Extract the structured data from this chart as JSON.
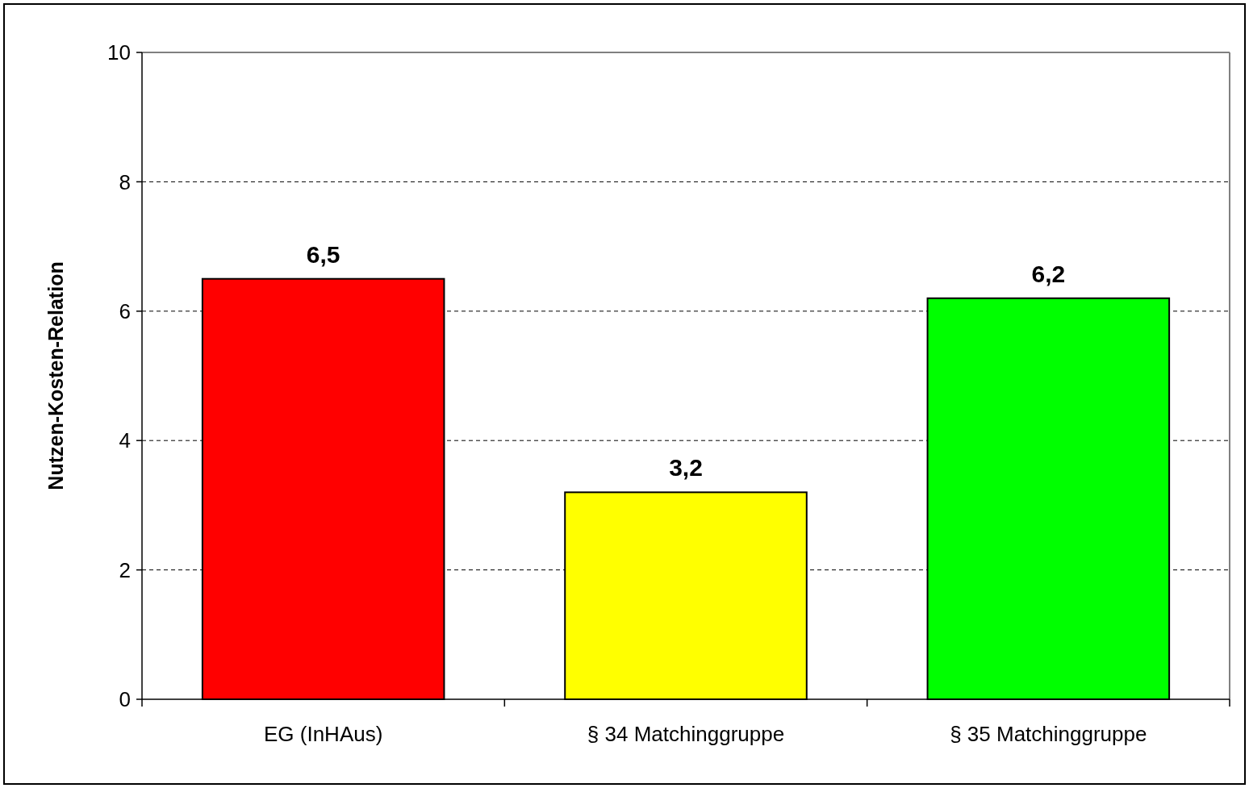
{
  "chart_data": {
    "type": "bar",
    "ylabel": "Nutzen-Kosten-Relation",
    "categories": [
      "EG (InHAus)",
      "§ 34 Matchinggruppe",
      "§ 35 Matchinggruppe"
    ],
    "values": [
      6.5,
      3.2,
      6.2
    ],
    "colors": [
      "#ff0000",
      "#ffff00",
      "#00ff00"
    ],
    "value_labels": [
      "6,5",
      "3,2",
      "6,2"
    ],
    "ylim": [
      0,
      10
    ],
    "yticks": [
      0,
      2,
      4,
      6,
      8,
      10
    ],
    "grid": "y"
  }
}
